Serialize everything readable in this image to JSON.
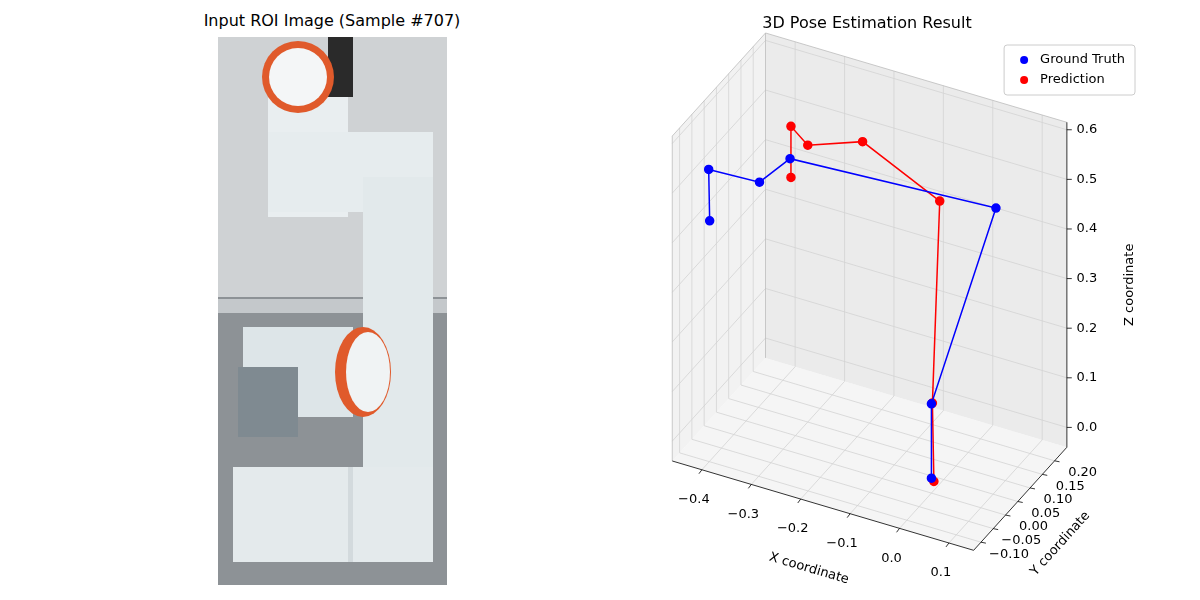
{
  "image": {
    "title": "Input ROI Image (Sample #707)"
  },
  "chart_data": {
    "type": "scatter3d",
    "title": "3D Pose Estimation Result",
    "x_label": "X coordinate",
    "y_label": "Y coordinate",
    "z_label": "Z coordinate",
    "xlim": [
      -0.46,
      0.15
    ],
    "ylim": [
      -0.13,
      0.25
    ],
    "zlim": [
      -0.04,
      0.615
    ],
    "xticks": [
      {
        "value": -0.4,
        "label": "−0.4"
      },
      {
        "value": -0.3,
        "label": "−0.3"
      },
      {
        "value": -0.2,
        "label": "−0.2"
      },
      {
        "value": -0.1,
        "label": "−0.1"
      },
      {
        "value": 0,
        "label": "0.0"
      },
      0.1
    ],
    "yticks": [
      {
        "value": -0.1,
        "label": "−0.10"
      },
      {
        "value": -0.05,
        "label": "−0.05"
      },
      {
        "value": 0,
        "label": "0.00"
      },
      0.05,
      {
        "value": 0.1,
        "label": "0.10"
      },
      0.15,
      {
        "value": 0.2,
        "label": "0.20"
      }
    ],
    "zticks": [
      {
        "value": 0,
        "label": "0.0"
      },
      0.1,
      0.2,
      0.3,
      0.4,
      0.5,
      0.6
    ],
    "grid": true,
    "legend": "upper right",
    "series": [
      {
        "name": "Ground Truth",
        "color": "#0000ff",
        "marker": "circle",
        "line_style": "solid",
        "x": [
          0.0,
          0.0,
          0.071,
          -0.311,
          -0.348,
          -0.426,
          -0.424
        ],
        "y": [
          0.0,
          0.0,
          0.12,
          0.05,
          0.0,
          -0.05,
          -0.05
        ],
        "z": [
          -0.01,
          0.14,
          0.49,
          0.515,
          0.484,
          0.514,
          0.411
        ]
      },
      {
        "name": "Prediction",
        "color": "#ff0000",
        "marker": "circle",
        "line_style": "solid",
        "x": [
          0.005,
          0.002,
          -0.008,
          -0.189,
          -0.29,
          -0.334,
          -0.334
        ],
        "y": [
          0.0,
          0.0,
          0.05,
          0.1,
          0.08,
          0.1,
          0.1
        ],
        "z": [
          -0.015,
          0.142,
          0.519,
          0.558,
          0.532,
          0.546,
          0.443
        ]
      }
    ]
  }
}
